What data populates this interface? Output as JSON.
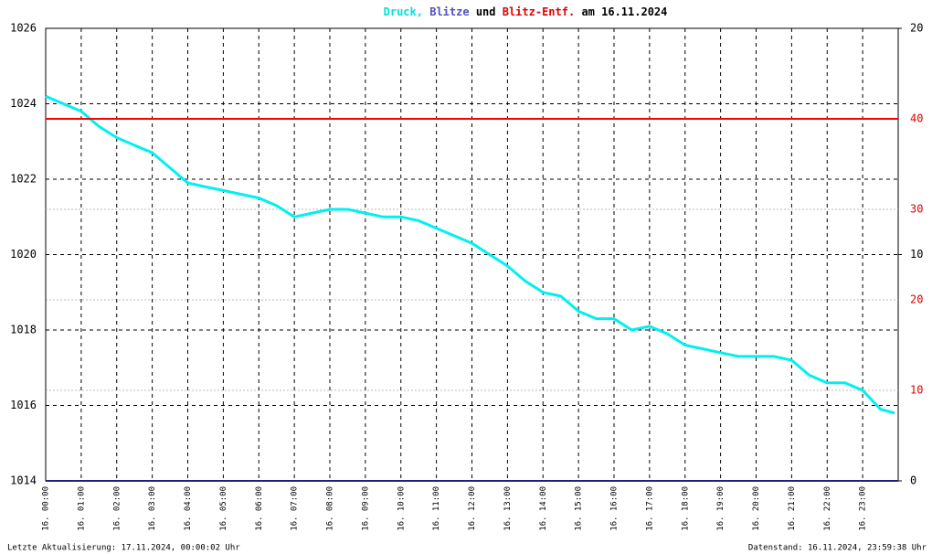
{
  "chart_data": {
    "type": "line",
    "title_parts": [
      {
        "text": "Druck,",
        "color": "#00e0e0"
      },
      {
        "text": "Blitze",
        "color": "#5050c0"
      },
      {
        "text": "und",
        "color": "#000000"
      },
      {
        "text": "Blitz-Entf.",
        "color": "#e00000"
      },
      {
        "text": "am 16.11.2024",
        "color": "#000000"
      }
    ],
    "xlim": [
      0,
      24
    ],
    "xticks": [
      {
        "value": 0,
        "label": "16. 00:00"
      },
      {
        "value": 1,
        "label": "16. 01:00"
      },
      {
        "value": 2,
        "label": "16. 02:00"
      },
      {
        "value": 3,
        "label": "16. 03:00"
      },
      {
        "value": 4,
        "label": "16. 04:00"
      },
      {
        "value": 5,
        "label": "16. 05:00"
      },
      {
        "value": 6,
        "label": "16. 06:00"
      },
      {
        "value": 7,
        "label": "16. 07:00"
      },
      {
        "value": 8,
        "label": "16. 08:00"
      },
      {
        "value": 9,
        "label": "16. 09:00"
      },
      {
        "value": 10,
        "label": "16. 10:00"
      },
      {
        "value": 11,
        "label": "16. 11:00"
      },
      {
        "value": 12,
        "label": "16. 12:00"
      },
      {
        "value": 13,
        "label": "16. 13:00"
      },
      {
        "value": 14,
        "label": "16. 14:00"
      },
      {
        "value": 15,
        "label": "16. 15:00"
      },
      {
        "value": 16,
        "label": "16. 16:00"
      },
      {
        "value": 17,
        "label": "16. 17:00"
      },
      {
        "value": 18,
        "label": "16. 18:00"
      },
      {
        "value": 19,
        "label": "16. 19:00"
      },
      {
        "value": 20,
        "label": "16. 20:00"
      },
      {
        "value": 21,
        "label": "16. 21:00"
      },
      {
        "value": 22,
        "label": "16. 22:00"
      },
      {
        "value": 23,
        "label": "16. 23:00"
      }
    ],
    "ylim": [
      1014,
      1026
    ],
    "yticks": [
      1014,
      1016,
      1018,
      1020,
      1022,
      1024,
      1026
    ],
    "y2lim": [
      0,
      20
    ],
    "y2ticks": [
      0,
      10,
      20
    ],
    "y2color": "#000000",
    "y3lim": [
      0,
      50
    ],
    "y3ticks": [
      10,
      20,
      30,
      40
    ],
    "y3color": "#e00000",
    "grid": true,
    "series": [
      {
        "name": "Druck",
        "color": "#00f0f0",
        "axis": "y",
        "x": [
          0,
          0.5,
          1,
          1.5,
          2,
          2.5,
          3,
          3.5,
          4,
          4.5,
          5,
          5.5,
          6,
          6.5,
          7,
          7.5,
          8,
          8.5,
          9,
          9.5,
          10,
          10.5,
          11,
          11.5,
          12,
          12.5,
          13,
          13.5,
          14,
          14.5,
          15,
          15.5,
          16,
          16.5,
          17,
          17.5,
          18,
          18.5,
          19,
          19.5,
          20,
          20.5,
          21,
          21.5,
          22,
          22.5,
          23,
          23.5,
          23.9
        ],
        "values": [
          1024.2,
          1024.0,
          1023.8,
          1023.4,
          1023.1,
          1022.9,
          1022.7,
          1022.3,
          1021.9,
          1021.8,
          1021.7,
          1021.6,
          1021.5,
          1021.3,
          1021.0,
          1021.1,
          1021.2,
          1021.2,
          1021.1,
          1021.0,
          1021.0,
          1020.9,
          1020.7,
          1020.5,
          1020.3,
          1020.0,
          1019.7,
          1019.3,
          1019.0,
          1018.9,
          1018.5,
          1018.3,
          1018.3,
          1018.0,
          1018.1,
          1017.9,
          1017.6,
          1017.5,
          1017.4,
          1017.3,
          1017.3,
          1017.3,
          1017.2,
          1016.8,
          1016.6,
          1016.6,
          1016.4,
          1015.9,
          1015.8
        ]
      },
      {
        "name": "Blitze",
        "color": "#202080",
        "axis": "y2",
        "x": [
          0,
          24
        ],
        "values": [
          0,
          0
        ]
      },
      {
        "name": "Blitz-Entf.",
        "color": "#ff0000",
        "axis": "y3",
        "x": [
          0,
          24
        ],
        "values": [
          40,
          40
        ]
      }
    ],
    "footer_left": "Letzte Aktualisierung: 17.11.2024, 00:00:02 Uhr",
    "footer_right": "Datenstand: 16.11.2024, 23:59:38 Uhr"
  }
}
